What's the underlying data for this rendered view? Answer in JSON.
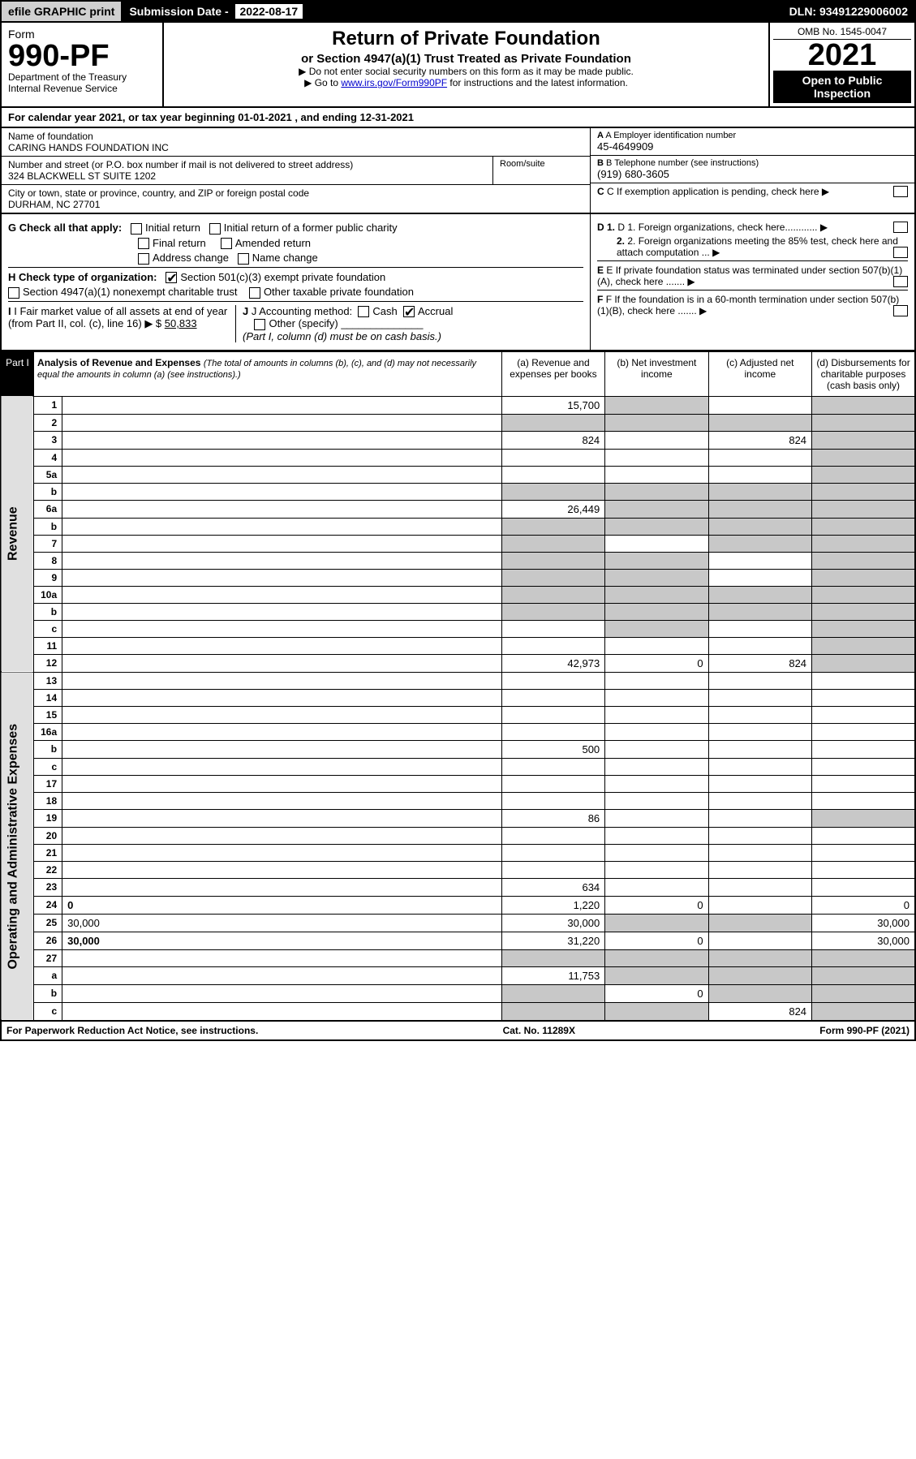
{
  "topbar": {
    "efile": "efile GRAPHIC print",
    "submission_label": "Submission Date - ",
    "submission_date": "2022-08-17",
    "dln": "DLN: 93491229006002"
  },
  "header": {
    "form_word": "Form",
    "form_num": "990-PF",
    "dept": "Department of the Treasury\nInternal Revenue Service",
    "title": "Return of Private Foundation",
    "subtitle": "or Section 4947(a)(1) Trust Treated as Private Foundation",
    "instr1": "▶ Do not enter social security numbers on this form as it may be made public.",
    "instr2_pre": "▶ Go to ",
    "instr2_link": "www.irs.gov/Form990PF",
    "instr2_post": " for instructions and the latest information.",
    "omb": "OMB No. 1545-0047",
    "year": "2021",
    "open": "Open to Public Inspection"
  },
  "calyear": "For calendar year 2021, or tax year beginning 01-01-2021          , and ending 12-31-2021",
  "info": {
    "name_lbl": "Name of foundation",
    "name": "CARING HANDS FOUNDATION INC",
    "addr_lbl": "Number and street (or P.O. box number if mail is not delivered to street address)",
    "addr": "324 BLACKWELL ST SUITE 1202",
    "room_lbl": "Room/suite",
    "city_lbl": "City or town, state or province, country, and ZIP or foreign postal code",
    "city": "DURHAM, NC  27701",
    "a_lbl": "A Employer identification number",
    "a_val": "45-4649909",
    "b_lbl": "B Telephone number (see instructions)",
    "b_val": "(919) 680-3605",
    "c_lbl": "C If exemption application is pending, check here"
  },
  "checks": {
    "g": "G Check all that apply:",
    "g_items": [
      "Initial return",
      "Initial return of a former public charity",
      "Final return",
      "Amended return",
      "Address change",
      "Name change"
    ],
    "h": "H Check type of organization:",
    "h_501": "Section 501(c)(3) exempt private foundation",
    "h_4947": "Section 4947(a)(1) nonexempt charitable trust",
    "h_other": "Other taxable private foundation",
    "i_lbl": "I Fair market value of all assets at end of year (from Part II, col. (c), line 16) ▶ $",
    "i_val": "50,833",
    "j_lbl": "J Accounting method:",
    "j_cash": "Cash",
    "j_accrual": "Accrual",
    "j_other": "Other (specify)",
    "j_note": "(Part I, column (d) must be on cash basis.)",
    "d1": "D 1. Foreign organizations, check here............",
    "d2": "2. Foreign organizations meeting the 85% test, check here and attach computation ...",
    "e": "E  If private foundation status was terminated under section 507(b)(1)(A), check here .......",
    "f": "F  If the foundation is in a 60-month termination under section 507(b)(1)(B), check here ......."
  },
  "part1": {
    "tag": "Part I",
    "title": "Analysis of Revenue and Expenses",
    "note": "(The total of amounts in columns (b), (c), and (d) may not necessarily equal the amounts in column (a) (see instructions).)",
    "col_a": "(a)  Revenue and expenses per books",
    "col_b": "(b)  Net investment income",
    "col_c": "(c)  Adjusted net income",
    "col_d": "(d)  Disbursements for charitable purposes (cash basis only)",
    "side_rev": "Revenue",
    "side_exp": "Operating and Administrative Expenses"
  },
  "rows": [
    {
      "n": "1",
      "d": "",
      "a": "15,700",
      "b": "",
      "c": "",
      "sb": true,
      "sd": true
    },
    {
      "n": "2",
      "d": "",
      "a": "",
      "b": "",
      "c": "",
      "sa": true,
      "sb": true,
      "sc": true,
      "sd": true
    },
    {
      "n": "3",
      "d": "",
      "a": "824",
      "b": "",
      "c": "824",
      "sd": true
    },
    {
      "n": "4",
      "d": "",
      "a": "",
      "b": "",
      "c": "",
      "sd": true
    },
    {
      "n": "5a",
      "d": "",
      "a": "",
      "b": "",
      "c": "",
      "sd": true
    },
    {
      "n": "b",
      "d": "",
      "a": "",
      "b": "",
      "c": "",
      "sa": true,
      "sb": true,
      "sc": true,
      "sd": true
    },
    {
      "n": "6a",
      "d": "",
      "a": "26,449",
      "b": "",
      "c": "",
      "sb": true,
      "sc": true,
      "sd": true
    },
    {
      "n": "b",
      "d": "",
      "a": "",
      "b": "",
      "c": "",
      "sa": true,
      "sb": true,
      "sc": true,
      "sd": true
    },
    {
      "n": "7",
      "d": "",
      "a": "",
      "b": "",
      "c": "",
      "sa": true,
      "sc": true,
      "sd": true
    },
    {
      "n": "8",
      "d": "",
      "a": "",
      "b": "",
      "c": "",
      "sa": true,
      "sb": true,
      "sd": true
    },
    {
      "n": "9",
      "d": "",
      "a": "",
      "b": "",
      "c": "",
      "sa": true,
      "sb": true,
      "sd": true
    },
    {
      "n": "10a",
      "d": "",
      "a": "",
      "b": "",
      "c": "",
      "sa": true,
      "sb": true,
      "sc": true,
      "sd": true
    },
    {
      "n": "b",
      "d": "",
      "a": "",
      "b": "",
      "c": "",
      "sa": true,
      "sb": true,
      "sc": true,
      "sd": true
    },
    {
      "n": "c",
      "d": "",
      "a": "",
      "b": "",
      "c": "",
      "sb": true,
      "sd": true
    },
    {
      "n": "11",
      "d": "",
      "a": "",
      "b": "",
      "c": "",
      "sd": true
    },
    {
      "n": "12",
      "d": "",
      "a": "42,973",
      "b": "0",
      "c": "824",
      "bold": true,
      "sd": true
    }
  ],
  "exp_rows": [
    {
      "n": "13",
      "d": "",
      "a": "",
      "b": "",
      "c": ""
    },
    {
      "n": "14",
      "d": "",
      "a": "",
      "b": "",
      "c": ""
    },
    {
      "n": "15",
      "d": "",
      "a": "",
      "b": "",
      "c": ""
    },
    {
      "n": "16a",
      "d": "",
      "a": "",
      "b": "",
      "c": ""
    },
    {
      "n": "b",
      "d": "",
      "a": "500",
      "b": "",
      "c": ""
    },
    {
      "n": "c",
      "d": "",
      "a": "",
      "b": "",
      "c": ""
    },
    {
      "n": "17",
      "d": "",
      "a": "",
      "b": "",
      "c": ""
    },
    {
      "n": "18",
      "d": "",
      "a": "",
      "b": "",
      "c": ""
    },
    {
      "n": "19",
      "d": "",
      "a": "86",
      "b": "",
      "c": "",
      "sd": true
    },
    {
      "n": "20",
      "d": "",
      "a": "",
      "b": "",
      "c": ""
    },
    {
      "n": "21",
      "d": "",
      "a": "",
      "b": "",
      "c": ""
    },
    {
      "n": "22",
      "d": "",
      "a": "",
      "b": "",
      "c": ""
    },
    {
      "n": "23",
      "d": "",
      "a": "634",
      "b": "",
      "c": ""
    },
    {
      "n": "24",
      "d": "0",
      "a": "1,220",
      "b": "0",
      "c": "",
      "bold": true
    },
    {
      "n": "25",
      "d": "30,000",
      "a": "30,000",
      "b": "",
      "c": "",
      "sb": true,
      "sc": true
    },
    {
      "n": "26",
      "d": "30,000",
      "a": "31,220",
      "b": "0",
      "c": "",
      "bold": true
    },
    {
      "n": "27",
      "d": "",
      "a": "",
      "b": "",
      "c": "",
      "sa": true,
      "sb": true,
      "sc": true,
      "sd": true
    },
    {
      "n": "a",
      "d": "",
      "a": "11,753",
      "b": "",
      "c": "",
      "bold": true,
      "sb": true,
      "sc": true,
      "sd": true
    },
    {
      "n": "b",
      "d": "",
      "a": "",
      "b": "0",
      "c": "",
      "bold": true,
      "sa": true,
      "sc": true,
      "sd": true
    },
    {
      "n": "c",
      "d": "",
      "a": "",
      "b": "",
      "c": "824",
      "bold": true,
      "sa": true,
      "sb": true,
      "sd": true
    }
  ],
  "footer": {
    "left": "For Paperwork Reduction Act Notice, see instructions.",
    "mid": "Cat. No. 11289X",
    "right": "Form 990-PF (2021)"
  },
  "colors": {
    "shade": "#c8c8c8",
    "sidebar": "#e0e0e0"
  }
}
